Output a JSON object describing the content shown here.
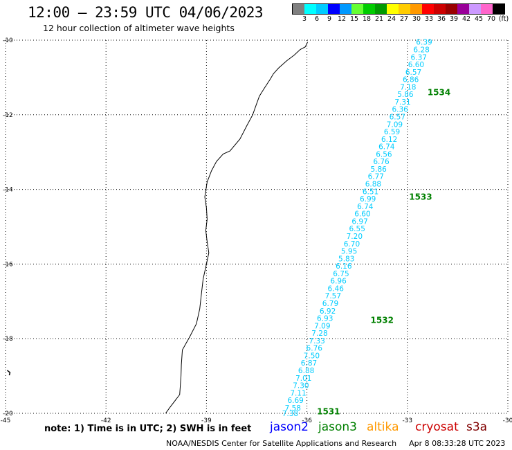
{
  "header": {
    "title": "12:00 — 23:59 UTC 04/06/2023",
    "subtitle": "12 hour collection of altimeter wave heights"
  },
  "color_scale": {
    "colors": [
      "#808080",
      "#00ffff",
      "#00ccff",
      "#0000ff",
      "#0099ff",
      "#66ff33",
      "#00cc00",
      "#009900",
      "#ffff00",
      "#ffcc00",
      "#ff9900",
      "#ff0000",
      "#cc0000",
      "#990000",
      "#990099",
      "#cc99ff",
      "#ff66cc",
      "#000000"
    ],
    "labels": [
      "3",
      "6",
      "9",
      "12",
      "15",
      "18",
      "21",
      "24",
      "27",
      "30",
      "33",
      "36",
      "39",
      "42",
      "45",
      "70",
      "(ft)"
    ]
  },
  "axes": {
    "lat_labels": [
      "-10",
      "-12",
      "-14",
      "-16",
      "-18",
      "-20"
    ],
    "lon_labels": [
      "-45",
      "-42",
      "-39",
      "-36",
      "-33",
      "-30"
    ]
  },
  "track": {
    "color": "#00ccff",
    "points": [
      {
        "lon": -32.5,
        "lat": -10.05,
        "v": "6.39"
      },
      {
        "lon": -32.58,
        "lat": -10.25,
        "v": "6.28"
      },
      {
        "lon": -32.66,
        "lat": -10.45,
        "v": "6.37"
      },
      {
        "lon": -32.74,
        "lat": -10.65,
        "v": "6.60"
      },
      {
        "lon": -32.82,
        "lat": -10.85,
        "v": "6.57"
      },
      {
        "lon": -32.9,
        "lat": -11.05,
        "v": "6.86"
      },
      {
        "lon": -32.98,
        "lat": -11.25,
        "v": "7.18"
      },
      {
        "lon": -33.06,
        "lat": -11.45,
        "v": "5.86"
      },
      {
        "lon": -33.14,
        "lat": -11.65,
        "v": "7.31"
      },
      {
        "lon": -33.22,
        "lat": -11.85,
        "v": "6.36"
      },
      {
        "lon": -33.3,
        "lat": -12.05,
        "v": "6.57"
      },
      {
        "lon": -33.38,
        "lat": -12.25,
        "v": "7.09"
      },
      {
        "lon": -33.46,
        "lat": -12.45,
        "v": "6.59"
      },
      {
        "lon": -33.54,
        "lat": -12.65,
        "v": "6.12"
      },
      {
        "lon": -33.62,
        "lat": -12.85,
        "v": "6.74"
      },
      {
        "lon": -33.7,
        "lat": -13.05,
        "v": "6.56"
      },
      {
        "lon": -33.78,
        "lat": -13.25,
        "v": "6.76"
      },
      {
        "lon": -33.86,
        "lat": -13.45,
        "v": "5.86"
      },
      {
        "lon": -33.94,
        "lat": -13.65,
        "v": "6.77"
      },
      {
        "lon": -34.02,
        "lat": -13.85,
        "v": "6.88"
      },
      {
        "lon": -34.1,
        "lat": -14.05,
        "v": "6.51"
      },
      {
        "lon": -34.18,
        "lat": -14.25,
        "v": "6.99"
      },
      {
        "lon": -34.26,
        "lat": -14.45,
        "v": "6.74"
      },
      {
        "lon": -34.34,
        "lat": -14.65,
        "v": "6.60"
      },
      {
        "lon": -34.42,
        "lat": -14.85,
        "v": "6.97"
      },
      {
        "lon": -34.5,
        "lat": -15.05,
        "v": "6.55"
      },
      {
        "lon": -34.58,
        "lat": -15.25,
        "v": "7.20"
      },
      {
        "lon": -34.66,
        "lat": -15.45,
        "v": "6.70"
      },
      {
        "lon": -34.74,
        "lat": -15.65,
        "v": "5.95"
      },
      {
        "lon": -34.82,
        "lat": -15.85,
        "v": "5.83"
      },
      {
        "lon": -34.9,
        "lat": -16.05,
        "v": "6.16"
      },
      {
        "lon": -34.98,
        "lat": -16.25,
        "v": "6.75"
      },
      {
        "lon": -35.06,
        "lat": -16.45,
        "v": "6.96"
      },
      {
        "lon": -35.14,
        "lat": -16.65,
        "v": "6.46"
      },
      {
        "lon": -35.22,
        "lat": -16.85,
        "v": "7.57"
      },
      {
        "lon": -35.3,
        "lat": -17.05,
        "v": "6.79"
      },
      {
        "lon": -35.38,
        "lat": -17.25,
        "v": "6.92"
      },
      {
        "lon": -35.46,
        "lat": -17.45,
        "v": "6.93"
      },
      {
        "lon": -35.54,
        "lat": -17.65,
        "v": "7.09"
      },
      {
        "lon": -35.62,
        "lat": -17.85,
        "v": "7.28"
      },
      {
        "lon": -35.7,
        "lat": -18.05,
        "v": "7.33"
      },
      {
        "lon": -35.78,
        "lat": -18.25,
        "v": "6.76"
      },
      {
        "lon": -35.86,
        "lat": -18.45,
        "v": "7.50"
      },
      {
        "lon": -35.94,
        "lat": -18.65,
        "v": "6.87"
      },
      {
        "lon": -36.02,
        "lat": -18.85,
        "v": "6.88"
      },
      {
        "lon": -36.1,
        "lat": -19.05,
        "v": "7.01"
      },
      {
        "lon": -36.18,
        "lat": -19.25,
        "v": "7.30"
      },
      {
        "lon": -36.26,
        "lat": -19.45,
        "v": "7.11"
      },
      {
        "lon": -36.34,
        "lat": -19.65,
        "v": "6.69"
      },
      {
        "lon": -36.42,
        "lat": -19.85,
        "v": "7.58"
      },
      {
        "lon": -36.5,
        "lat": -20.0,
        "v": "7.38"
      }
    ],
    "passes": [
      {
        "id": "1534",
        "lon": -32.4,
        "lat": -11.4
      },
      {
        "id": "1533",
        "lon": -32.95,
        "lat": -14.2
      },
      {
        "id": "1532",
        "lon": -34.1,
        "lat": -17.5
      },
      {
        "id": "1531",
        "lon": -35.7,
        "lat": -19.95
      }
    ],
    "pass_color": "#008000"
  },
  "coastline": [
    [
      -35.98,
      -10.05
    ],
    [
      -36.05,
      -10.18
    ],
    [
      -36.2,
      -10.25
    ],
    [
      -36.38,
      -10.4
    ],
    [
      -36.6,
      -10.55
    ],
    [
      -36.85,
      -10.75
    ],
    [
      -37.0,
      -10.9
    ],
    [
      -37.1,
      -11.05
    ],
    [
      -37.28,
      -11.3
    ],
    [
      -37.42,
      -11.5
    ],
    [
      -37.5,
      -11.7
    ],
    [
      -37.62,
      -12.0
    ],
    [
      -37.8,
      -12.3
    ],
    [
      -38.0,
      -12.65
    ],
    [
      -38.3,
      -12.97
    ],
    [
      -38.5,
      -13.05
    ],
    [
      -38.7,
      -13.25
    ],
    [
      -38.85,
      -13.5
    ],
    [
      -38.98,
      -13.8
    ],
    [
      -39.05,
      -14.2
    ],
    [
      -39.0,
      -14.5
    ],
    [
      -38.98,
      -14.8
    ],
    [
      -39.02,
      -15.1
    ],
    [
      -38.98,
      -15.4
    ],
    [
      -38.93,
      -15.7
    ],
    [
      -39.0,
      -16.0
    ],
    [
      -39.1,
      -16.4
    ],
    [
      -39.15,
      -16.8
    ],
    [
      -39.2,
      -17.2
    ],
    [
      -39.3,
      -17.6
    ],
    [
      -39.5,
      -17.95
    ],
    [
      -39.72,
      -18.3
    ],
    [
      -39.75,
      -18.7
    ],
    [
      -39.76,
      -19.0
    ],
    [
      -39.8,
      -19.5
    ],
    [
      -40.1,
      -19.85
    ],
    [
      -40.22,
      -20.0
    ]
  ],
  "footer": {
    "note": "note:  1) Time is in UTC;  2) SWH is in feet",
    "satellites": [
      {
        "name": "jason2",
        "color": "#0000ff"
      },
      {
        "name": "jason3",
        "color": "#008000"
      },
      {
        "name": "altika",
        "color": "#ff9900"
      },
      {
        "name": "cryosat",
        "color": "#cc0000"
      },
      {
        "name": "s3a",
        "color": "#800000"
      }
    ],
    "credit": "NOAA/NESDIS Center for Satellite Applications and Research",
    "timestamp": "Apr  8 08:33:28 UTC 2023"
  }
}
